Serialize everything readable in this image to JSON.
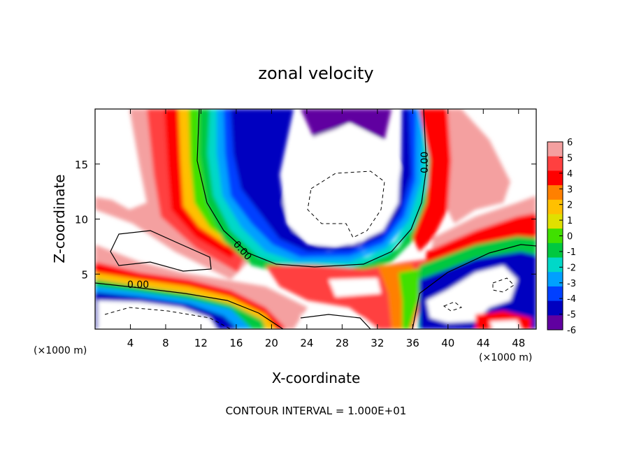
{
  "chart_data": {
    "type": "heatmap",
    "title": "zonal velocity",
    "xlabel": "X-coordinate",
    "ylabel": "Z-coordinate",
    "x_unit": "(×1000 m)",
    "xlim": [
      0,
      50
    ],
    "ylim": [
      0,
      20
    ],
    "x_ticks": [
      4,
      8,
      12,
      16,
      20,
      24,
      28,
      32,
      36,
      40,
      44,
      48
    ],
    "y_ticks": [
      5,
      10,
      15
    ],
    "colorbar": {
      "ticks": [
        6,
        5,
        4,
        3,
        2,
        1,
        0,
        -1,
        -2,
        -3,
        -4,
        -5,
        -6
      ],
      "range": [
        -6,
        6
      ],
      "colors": [
        "#f4a0a0",
        "#ff4040",
        "#ff0000",
        "#ff8000",
        "#ffc000",
        "#e0e000",
        "#40e000",
        "#00c840",
        "#00d8c8",
        "#00a0ff",
        "#0040ff",
        "#0000c0",
        "#6000a0"
      ]
    },
    "contour_labels": [
      "0.00",
      "0.00",
      "0.00"
    ],
    "footer": "CONTOUR INTERVAL = 1.000E+01"
  }
}
